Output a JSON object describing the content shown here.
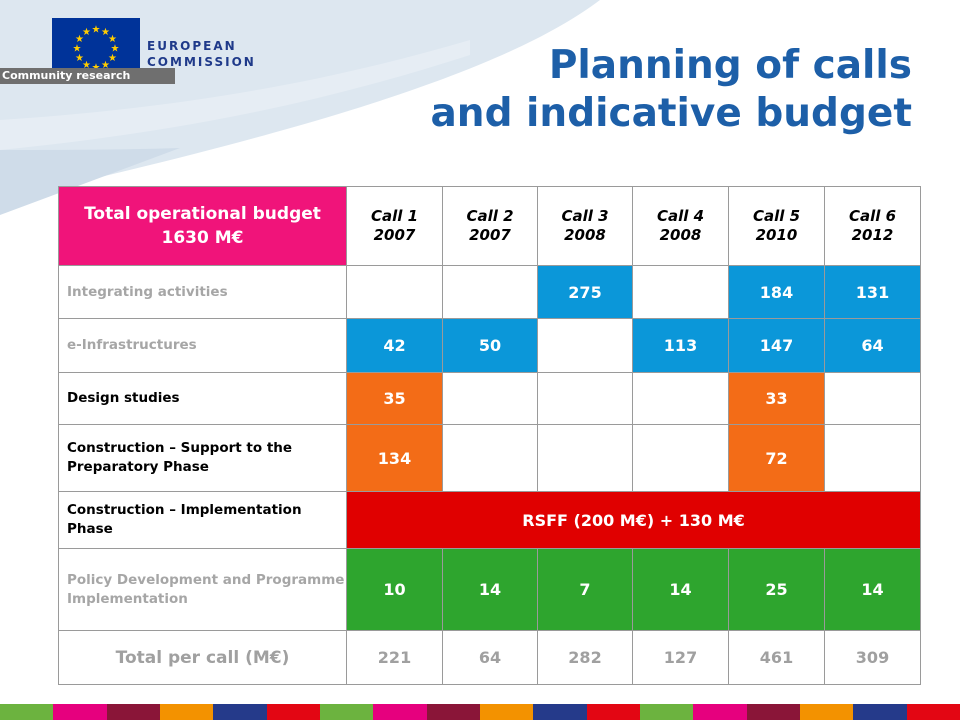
{
  "logo": {
    "line1": "EUROPEAN",
    "line2": "COMMISSION",
    "tagline": "Community research"
  },
  "title": {
    "line1": "Planning of calls",
    "line2": "and indicative budget"
  },
  "table": {
    "header_total": "Total operational budget 1630 M€",
    "calls": [
      {
        "label": "Call 1",
        "year": "2007"
      },
      {
        "label": "Call 2",
        "year": "2007"
      },
      {
        "label": "Call 3",
        "year": "2008"
      },
      {
        "label": "Call 4",
        "year": "2008"
      },
      {
        "label": "Call 5",
        "year": "2010"
      },
      {
        "label": "Call 6",
        "year": "2012"
      }
    ],
    "rows": [
      {
        "label": "Integrating activities",
        "values": [
          "",
          "",
          "275",
          "",
          "184",
          "131"
        ]
      },
      {
        "label": "e-Infrastructures",
        "values": [
          "42",
          "50",
          "",
          "113",
          "147",
          "64"
        ]
      },
      {
        "label": "Design studies",
        "values": [
          "35",
          "",
          "",
          "",
          "33",
          ""
        ]
      },
      {
        "label": "Construction – Support to the Preparatory Phase",
        "values": [
          "134",
          "",
          "",
          "",
          "72",
          ""
        ]
      },
      {
        "label": "Construction – Implementation Phase",
        "merged_value": "RSFF (200 M€) + 130 M€"
      },
      {
        "label": "Policy Development and Programme Implementation",
        "values": [
          "10",
          "14",
          "7",
          "14",
          "25",
          "14"
        ]
      }
    ],
    "total": {
      "label": "Total per call (M€)",
      "values": [
        "221",
        "64",
        "282",
        "127",
        "461",
        "309"
      ]
    }
  },
  "colors": {
    "title": "#1d5fa8",
    "header_total_bg": "#f0147a",
    "integrating_blue": "#0b97d9",
    "design_orange": "#f36c17",
    "rsff_red": "#e00000",
    "policy_green": "#2ea52e"
  }
}
